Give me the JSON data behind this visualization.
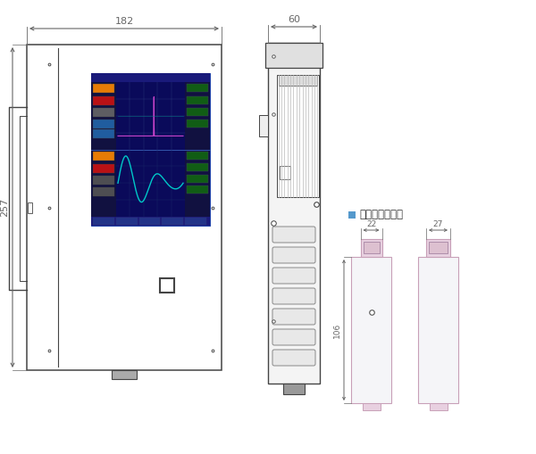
{
  "bg_color": "#ffffff",
  "line_color": "#444444",
  "dim_color": "#666666",
  "screen_bg": "#0a0a5a",
  "screen_teal": "#00c8c8",
  "screen_pink": "#cc44cc",
  "sensor_pink": "#c8a0b8",
  "sensor_body": "#f2f2f2",
  "side_bg": "#f0f0f0",
  "dim_182": "182",
  "dim_60": "60",
  "dim_257": "257",
  "dim_22": "22",
  "dim_27": "27",
  "dim_106": "106",
  "label_sensor": "センサユニット",
  "sensor_label_color": "#5599cc"
}
